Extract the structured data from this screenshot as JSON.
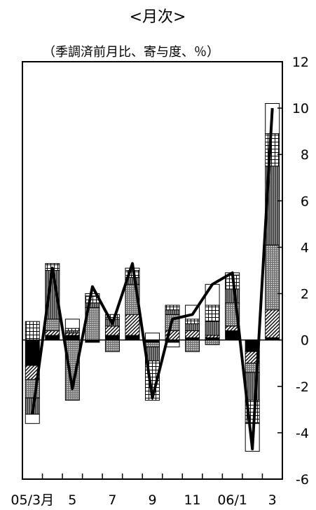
{
  "chart_data": {
    "type": "bar",
    "title": "<月次>",
    "subtitle": "（季調済前月比、寄与度、％）",
    "x_tick_labels": [
      "05/3月",
      "5",
      "7",
      "9",
      "11",
      "06/1",
      "3"
    ],
    "categories": [
      "05/3",
      "05/4",
      "05/5",
      "05/6",
      "05/7",
      "05/8",
      "05/9",
      "05/10",
      "05/11",
      "05/12",
      "06/1",
      "06/2",
      "06/3"
    ],
    "ylim": [
      -6,
      12
    ],
    "y_ticks": [
      -6,
      -4,
      -2,
      0,
      2,
      4,
      6,
      8,
      10,
      12
    ],
    "y_tick_labels": [
      "-6",
      "-4",
      "-2",
      "0",
      "2",
      "4",
      "6",
      "8",
      "10",
      "12"
    ],
    "stack_order": [
      "s1",
      "s2",
      "s3",
      "s4",
      "s5",
      "s6"
    ],
    "series": [
      {
        "key": "s1",
        "fill": "solid-black",
        "values": [
          -1.1,
          0.2,
          0.2,
          -0.1,
          0.2,
          0.2,
          -0.1,
          -0.1,
          0.1,
          0.1,
          0.4,
          -0.5,
          0.1
        ]
      },
      {
        "key": "s2",
        "fill": "diagonal",
        "values": [
          -0.6,
          0.2,
          0.1,
          0.0,
          0.4,
          0.9,
          0.0,
          0.4,
          0.3,
          0.1,
          0.2,
          -0.5,
          1.2
        ]
      },
      {
        "key": "s3",
        "fill": "dotted-gray",
        "values": [
          -0.8,
          0.5,
          -2.6,
          1.4,
          -0.5,
          1.3,
          -0.2,
          0.7,
          -0.5,
          -0.2,
          1.0,
          -0.4,
          2.8
        ]
      },
      {
        "key": "s4",
        "fill": "vertical-hatch",
        "values": [
          -0.7,
          2.1,
          0.1,
          0.2,
          0.3,
          0.3,
          -0.6,
          0.2,
          0.3,
          0.6,
          0.6,
          -1.2,
          3.4
        ]
      },
      {
        "key": "s5",
        "fill": "grid",
        "values": [
          0.8,
          0.3,
          0.1,
          0.3,
          0.2,
          0.3,
          -1.7,
          0.2,
          0.2,
          0.7,
          0.6,
          -1.0,
          1.4
        ]
      },
      {
        "key": "s6",
        "fill": "white",
        "values": [
          -0.4,
          0.0,
          0.4,
          0.1,
          0.0,
          0.1,
          0.3,
          -0.2,
          0.6,
          0.9,
          0.1,
          -1.2,
          1.3
        ]
      }
    ],
    "line": {
      "values": [
        -3.2,
        3.1,
        -2.1,
        2.3,
        0.7,
        3.3,
        -2.5,
        0.9,
        1.1,
        2.4,
        2.9,
        -4.7,
        10.0
      ]
    },
    "grid": false,
    "legend": "none"
  }
}
